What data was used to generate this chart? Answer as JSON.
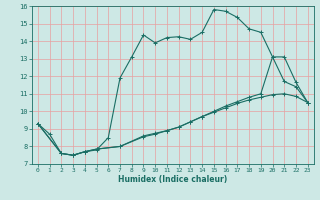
{
  "xlabel": "Humidex (Indice chaleur)",
  "bg_color": "#cde8e5",
  "line_color": "#1a6e64",
  "grid_color": "#e8a0a0",
  "xlim": [
    -0.5,
    23.5
  ],
  "ylim": [
    7,
    16
  ],
  "xticks": [
    0,
    1,
    2,
    3,
    4,
    5,
    6,
    7,
    8,
    9,
    10,
    11,
    12,
    13,
    14,
    15,
    16,
    17,
    18,
    19,
    20,
    21,
    22,
    23
  ],
  "yticks": [
    7,
    8,
    9,
    10,
    11,
    12,
    13,
    14,
    15,
    16
  ],
  "series1_x": [
    0,
    1,
    2,
    3,
    4,
    5,
    6,
    7,
    8,
    9,
    10,
    11,
    12,
    13,
    14,
    15,
    16,
    17,
    18,
    19,
    20,
    21,
    22,
    23
  ],
  "series1_y": [
    9.3,
    8.7,
    7.6,
    7.5,
    7.7,
    7.8,
    8.5,
    11.9,
    13.1,
    14.35,
    13.9,
    14.2,
    14.25,
    14.1,
    14.5,
    15.8,
    15.7,
    15.35,
    14.7,
    14.5,
    13.1,
    11.7,
    11.4,
    10.5
  ],
  "series2_x": [
    0,
    2,
    3,
    4,
    5,
    7,
    9,
    10,
    11,
    12,
    13,
    14,
    15,
    16,
    17,
    18,
    19,
    20,
    21,
    22,
    23
  ],
  "series2_y": [
    9.3,
    7.6,
    7.5,
    7.7,
    7.85,
    8.0,
    8.6,
    8.75,
    8.9,
    9.1,
    9.4,
    9.7,
    10.0,
    10.3,
    10.55,
    10.8,
    11.0,
    13.1,
    13.1,
    11.65,
    10.5
  ],
  "series3_x": [
    0,
    2,
    3,
    4,
    5,
    7,
    9,
    10,
    11,
    12,
    13,
    14,
    15,
    16,
    17,
    18,
    19,
    20,
    21,
    22,
    23
  ],
  "series3_y": [
    9.3,
    7.6,
    7.5,
    7.7,
    7.85,
    8.0,
    8.55,
    8.7,
    8.9,
    9.1,
    9.4,
    9.7,
    9.95,
    10.2,
    10.45,
    10.65,
    10.8,
    10.95,
    11.0,
    10.85,
    10.5
  ]
}
